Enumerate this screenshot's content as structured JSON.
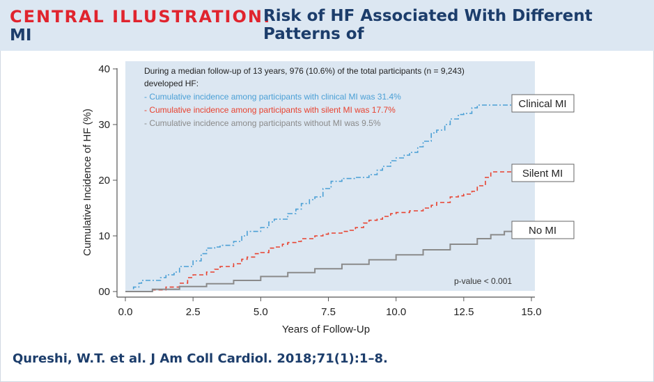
{
  "header": {
    "label": "CENTRAL ILLUSTRATION:",
    "title_line1": "Risk of HF Associated With Different Patterns of",
    "title_line2": "MI"
  },
  "citation": "Qureshi, W.T. et al. J Am Coll Cardiol. 2018;71(1):1–8.",
  "colors": {
    "clinical": "#4a9fd5",
    "silent": "#e8412e",
    "none": "#8a8a8a",
    "plot_bg": "#dce7f2"
  },
  "chart_data": {
    "type": "line",
    "xlabel": "Years of Follow-Up",
    "ylabel": "Cumulative Incidence of HF (%)",
    "xlim": [
      0,
      15
    ],
    "ylim": [
      0,
      40
    ],
    "xticks": [
      "0.0",
      "2.5",
      "5.0",
      "7.5",
      "10.0",
      "12.5",
      "15.0"
    ],
    "yticks": [
      "00",
      "10",
      "20",
      "30",
      "40"
    ],
    "annotation": {
      "line1": "During a median follow-up of 13 years, 976 (10.6%) of the total participants (n = 9,243)",
      "line2": "developed HF:",
      "clinical": "- Cumulative incidence among participants with clinical MI was 31.4%",
      "silent": "- Cumulative incidence among participants with silent MI was 17.7%",
      "none": "- Cumulative incidence among participants without MI was 9.5%"
    },
    "pvalue": "p-value < 0.001",
    "series": [
      {
        "name": "Clinical MI",
        "style": "dashdot",
        "color": "#4a9fd5",
        "x": [
          0,
          0.3,
          0.5,
          0.6,
          1.0,
          1.3,
          1.5,
          1.8,
          2.0,
          2.5,
          2.8,
          3.0,
          3.3,
          3.5,
          4.0,
          4.3,
          4.5,
          5.0,
          5.3,
          5.5,
          6.0,
          6.3,
          6.5,
          6.8,
          7.0,
          7.3,
          7.6,
          8.0,
          8.5,
          9.0,
          9.3,
          9.5,
          9.8,
          10.0,
          10.3,
          10.5,
          10.8,
          11.0,
          11.3,
          11.5,
          11.8,
          12.0,
          12.3,
          12.5,
          12.8,
          13.0,
          13.5,
          14.0,
          14.3
        ],
        "y": [
          0,
          0.8,
          1.5,
          2.0,
          2.0,
          2.5,
          3.0,
          3.5,
          4.5,
          5.5,
          6.8,
          7.8,
          8.0,
          8.3,
          9.0,
          10.0,
          10.8,
          11.5,
          12.5,
          13.0,
          14.0,
          14.8,
          15.8,
          16.5,
          17.0,
          18.5,
          19.8,
          20.3,
          20.5,
          21.0,
          21.8,
          22.5,
          23.5,
          24.0,
          24.5,
          25.0,
          26.0,
          27.0,
          28.5,
          29.0,
          30.0,
          31.0,
          31.8,
          32.0,
          33.0,
          33.5,
          33.5,
          33.5,
          33.5
        ]
      },
      {
        "name": "Silent MI",
        "style": "dashed",
        "color": "#e8412e",
        "x": [
          0,
          0.5,
          1.0,
          1.5,
          2.0,
          2.3,
          2.5,
          3.0,
          3.3,
          3.5,
          4.0,
          4.3,
          4.5,
          4.8,
          5.0,
          5.3,
          5.5,
          5.8,
          6.0,
          6.3,
          6.5,
          7.0,
          7.3,
          7.5,
          8.0,
          8.3,
          8.5,
          8.8,
          9.0,
          9.3,
          9.5,
          9.8,
          10.0,
          10.5,
          11.0,
          11.3,
          11.5,
          12.0,
          12.3,
          12.5,
          12.8,
          13.0,
          13.3,
          13.5,
          14.0,
          14.3
        ],
        "y": [
          0,
          0,
          0.3,
          0.8,
          1.5,
          2.5,
          3.0,
          3.5,
          4.0,
          4.5,
          5.0,
          5.8,
          6.2,
          6.8,
          7.0,
          7.8,
          8.0,
          8.5,
          8.8,
          9.0,
          9.5,
          10.0,
          10.3,
          10.5,
          10.8,
          11.0,
          11.5,
          12.3,
          12.8,
          13.0,
          13.5,
          14.0,
          14.2,
          14.5,
          15.0,
          15.5,
          16.0,
          17.0,
          17.2,
          17.5,
          18.0,
          19.0,
          20.5,
          21.5,
          21.5,
          21.5
        ]
      },
      {
        "name": "No MI",
        "style": "solid",
        "color": "#8a8a8a",
        "x": [
          0,
          1,
          2,
          3,
          4,
          5,
          6,
          7,
          8,
          9,
          10,
          11,
          12,
          13,
          13.5,
          14,
          14.3
        ],
        "y": [
          0,
          0.4,
          0.9,
          1.4,
          2.0,
          2.7,
          3.4,
          4.1,
          4.9,
          5.7,
          6.6,
          7.5,
          8.5,
          9.5,
          10.2,
          10.8,
          11.2
        ]
      }
    ]
  }
}
